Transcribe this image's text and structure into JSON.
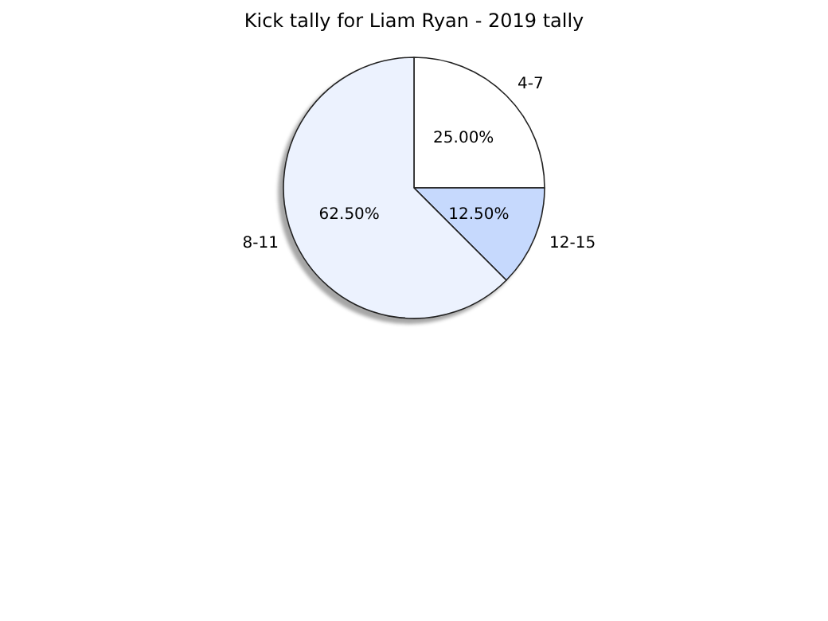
{
  "chart_data": {
    "type": "pie",
    "title": "Kick tally for Liam Ryan - 2019 tally",
    "categories": [
      "4-7",
      "12-15",
      "8-11"
    ],
    "values": [
      25,
      12.5,
      62.5
    ],
    "colors": [
      "#ffffff",
      "#c6d9fd",
      "#ecf2fe"
    ],
    "value_labels": [
      "25.00%",
      "12.50%",
      "62.50%"
    ],
    "legend": false
  }
}
